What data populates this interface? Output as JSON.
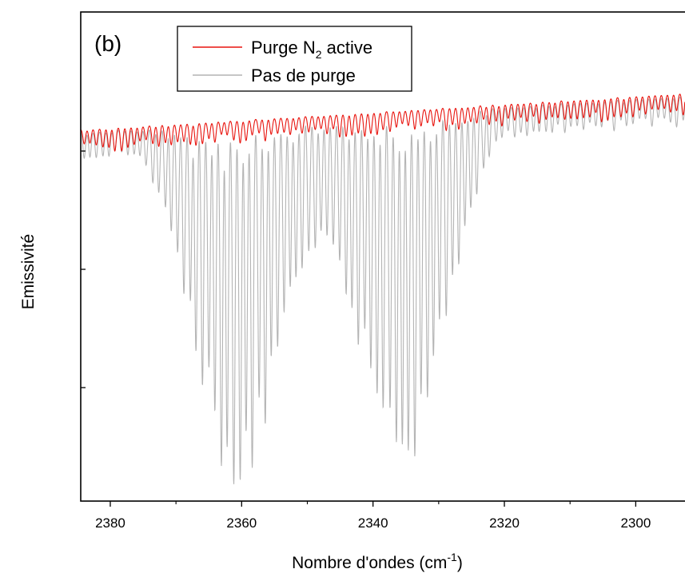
{
  "chart_data": {
    "type": "line",
    "panel_label": "(b)",
    "xlabel": "Nombre d'ondes (cm",
    "xlabel_sup": "-1",
    "xlabel_end": ")",
    "ylabel": "Emissivité",
    "xlim": [
      2384.5,
      2292.5
    ],
    "x_reversed": true,
    "y_tick_labels_shown": false,
    "x_ticks": [
      2380,
      2360,
      2340,
      2320,
      2300
    ],
    "x_tick_labels": [
      "2380",
      "2360",
      "2340",
      "2320",
      "2300"
    ],
    "legend_position": "top-left",
    "series": [
      {
        "name": "Purge N",
        "name_sub": "2",
        "name_end": " active",
        "color": "#e8140e",
        "baseline_start": 0.76,
        "baseline_end": 0.835,
        "line_spacing": 0.95,
        "depth_max": 0.05
      },
      {
        "name": "Pas de purge",
        "color": "#b4b4b4",
        "baseline_start": 0.755,
        "baseline_end": 0.83,
        "line_spacing": 0.95,
        "bands": [
          {
            "center": 2360.5,
            "width": 9.5,
            "depth": 0.705
          },
          {
            "center": 2335.5,
            "width": 9.5,
            "depth": 0.69
          }
        ]
      }
    ]
  }
}
